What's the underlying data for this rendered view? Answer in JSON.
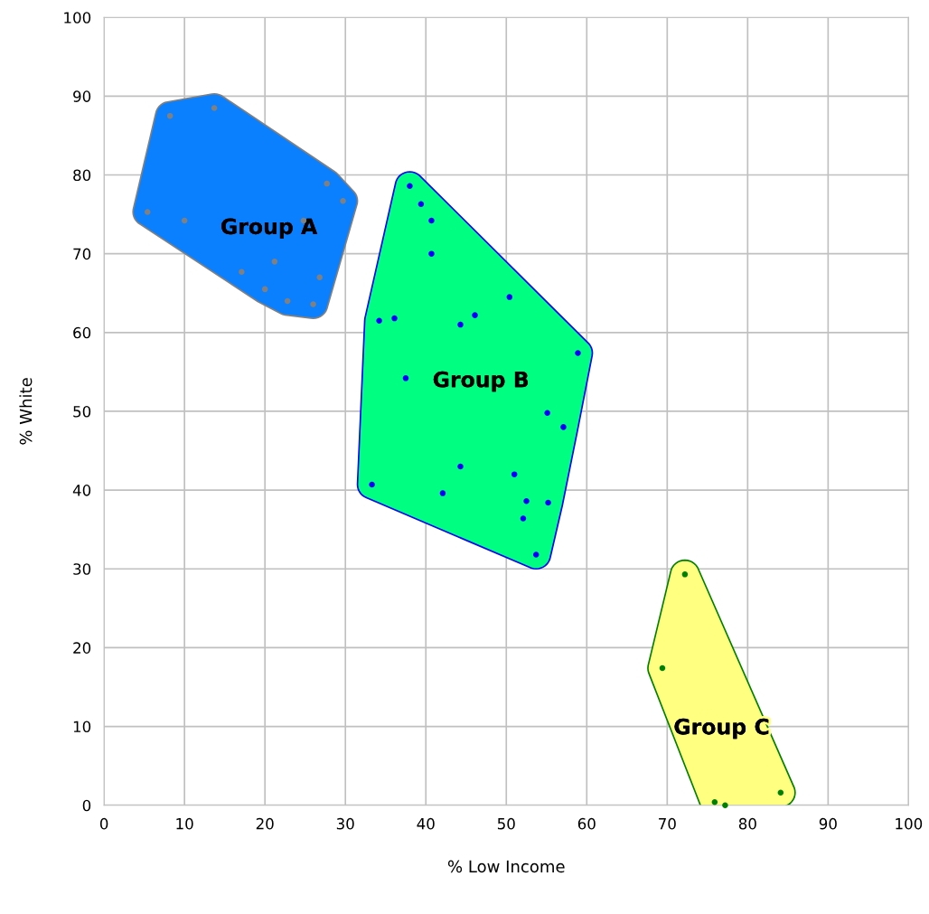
{
  "chart_data": {
    "type": "scatter",
    "xlabel": "% Low Income",
    "ylabel": "% White",
    "xlim": [
      0,
      100
    ],
    "ylim": [
      0,
      100
    ],
    "xticks": [
      0,
      10,
      20,
      30,
      40,
      50,
      60,
      70,
      80,
      90,
      100
    ],
    "yticks": [
      0,
      10,
      20,
      30,
      40,
      50,
      60,
      70,
      80,
      90,
      100
    ],
    "grid": true,
    "legend": false,
    "marker": "circle",
    "series": [
      {
        "name": "Group A",
        "color": "#808080",
        "x": [
          8.2,
          13.7,
          5.4,
          10.0,
          24.8,
          27.7,
          29.7,
          21.2,
          17.1,
          26.8,
          20.0,
          22.8,
          26.0
        ],
        "values": [
          87.5,
          88.5,
          75.3,
          74.2,
          74.2,
          78.9,
          76.7,
          69.0,
          67.7,
          67.0,
          65.5,
          64.0,
          63.6
        ]
      },
      {
        "name": "Group B",
        "color": "#0000ff",
        "x": [
          38.0,
          39.4,
          40.7,
          40.7,
          50.4,
          46.1,
          44.3,
          34.2,
          36.1,
          58.9,
          37.5,
          55.1,
          57.1,
          44.3,
          51.0,
          33.3,
          42.1,
          52.5,
          55.2,
          52.1,
          53.7
        ],
        "values": [
          78.6,
          76.3,
          74.2,
          70.0,
          64.5,
          62.2,
          61.0,
          61.5,
          61.8,
          57.4,
          54.2,
          49.8,
          48.0,
          43.0,
          42.0,
          40.7,
          39.6,
          38.6,
          38.4,
          36.4,
          31.8
        ]
      },
      {
        "name": "Group C",
        "color": "#008000",
        "x": [
          72.2,
          69.4,
          84.1,
          75.9,
          77.2
        ],
        "values": [
          29.3,
          17.4,
          1.6,
          0.4,
          0.0
        ]
      }
    ]
  }
}
